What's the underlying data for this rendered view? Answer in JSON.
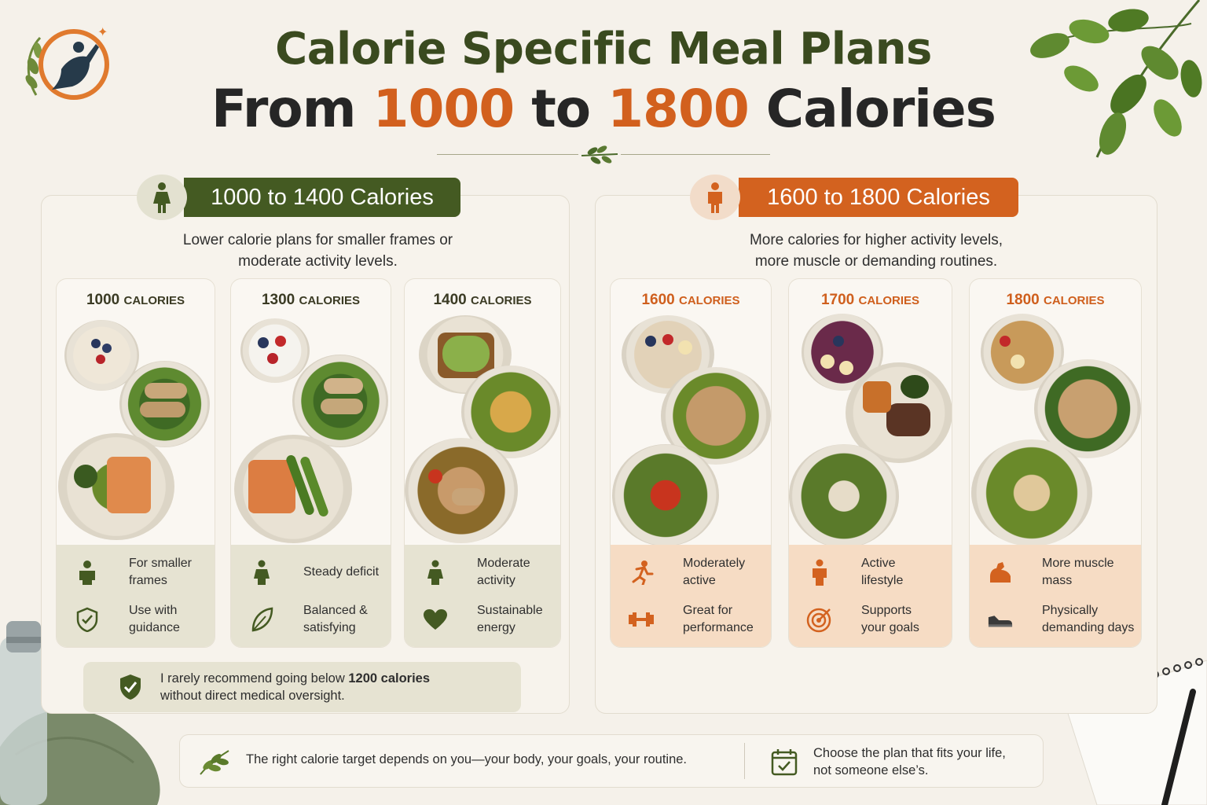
{
  "title": {
    "line1": "Calorie Specific Meal Plans",
    "line2_from": "From",
    "line2_low": "1000",
    "line2_to": "to",
    "line2_high": "1800",
    "line2_end": "Calories"
  },
  "colors": {
    "green": "#445a22",
    "orange": "#d3621f",
    "background": "#f5f1ea"
  },
  "left_panel": {
    "pill": "1000 to 1400 Calories",
    "icon": "woman-icon",
    "desc_line1": "Lower calorie plans for smaller frames or",
    "desc_line2": "moderate activity levels.",
    "cards": [
      {
        "num": "1000",
        "unit": "CALORIES",
        "f1_icon": "person-icon",
        "f1": "For smaller frames",
        "f2_icon": "shield-check-icon",
        "f2": "Use with guidance"
      },
      {
        "num": "1300",
        "unit": "CALORIES",
        "f1_icon": "woman-walking-icon",
        "f1": "Steady deficit",
        "f2_icon": "leaf-icon",
        "f2": "Balanced & satisfying"
      },
      {
        "num": "1400",
        "unit": "CALORIES",
        "f1_icon": "woman-icon",
        "f1": "Moderate activity",
        "f2_icon": "heart-icon",
        "f2": "Sustainable energy"
      }
    ],
    "note_line1_pre": "I rarely recommend going below",
    "note_bold": "1200 calories",
    "note_line2": "without direct medical oversight."
  },
  "right_panel": {
    "pill": "1600 to 1800 Calories",
    "icon": "man-icon",
    "desc_line1": "More calories for higher activity levels,",
    "desc_line2": "more muscle or demanding routines.",
    "cards": [
      {
        "num": "1600",
        "unit": "CALORIES",
        "f1_icon": "runner-icon",
        "f1": "Moderately active",
        "f2_icon": "dumbbell-icon",
        "f2": "Great for performance"
      },
      {
        "num": "1700",
        "unit": "CALORIES",
        "f1_icon": "person-icon",
        "f1": "Active lifestyle",
        "f2_icon": "target-icon",
        "f2": "Supports your goals"
      },
      {
        "num": "1800",
        "unit": "CALORIES",
        "f1_icon": "flexed-arm-icon",
        "f1": "More muscle mass",
        "f2_icon": "sneaker-icon",
        "f2": "Physically demanding days"
      }
    ]
  },
  "footer": {
    "left": "The right calorie target depends on you—your body, your goals, your routine.",
    "right_line1": "Choose the plan that fits your life,",
    "right_line2": "not someone else’s."
  }
}
